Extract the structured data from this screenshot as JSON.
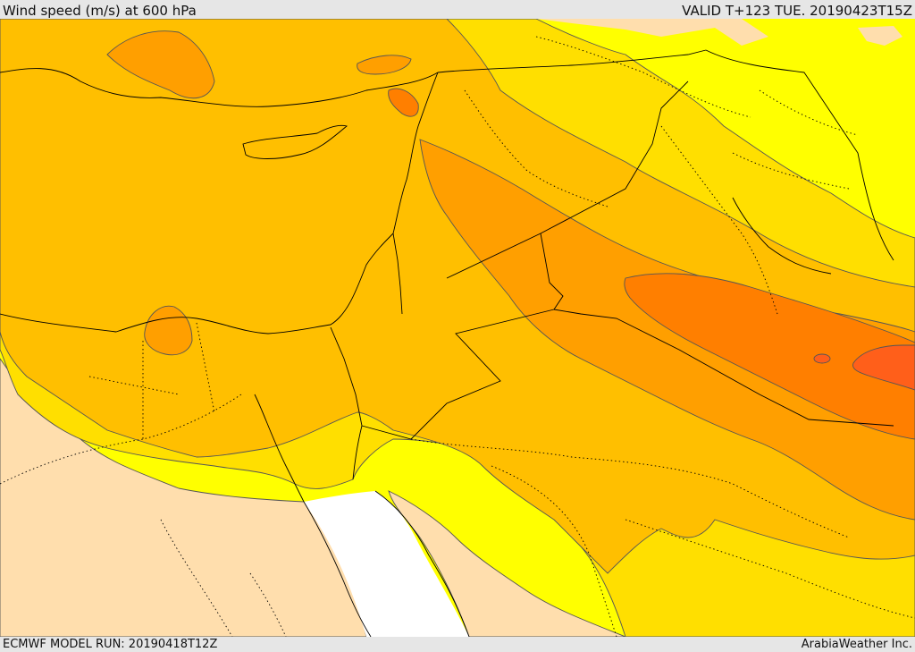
{
  "header": {
    "title": "Wind speed (m/s) at 600 hPa",
    "valid": "VALID T+123 TUE. 20190423T15Z"
  },
  "footer": {
    "run": "ECMWF MODEL RUN: 20190418T12Z",
    "credit": "ArabiaWeather Inc."
  },
  "map": {
    "variable": "wind speed",
    "level": "600 hPa",
    "shading_colors": {
      "calm": "#ffdead",
      "band1": "#ffff00",
      "band2": "#ffdf00",
      "band3": "#ffbf00",
      "band4": "#ff9f00",
      "band5": "#ff7f00",
      "band6": "#ff5f1a",
      "sea_no_data": "#ffffff"
    }
  }
}
